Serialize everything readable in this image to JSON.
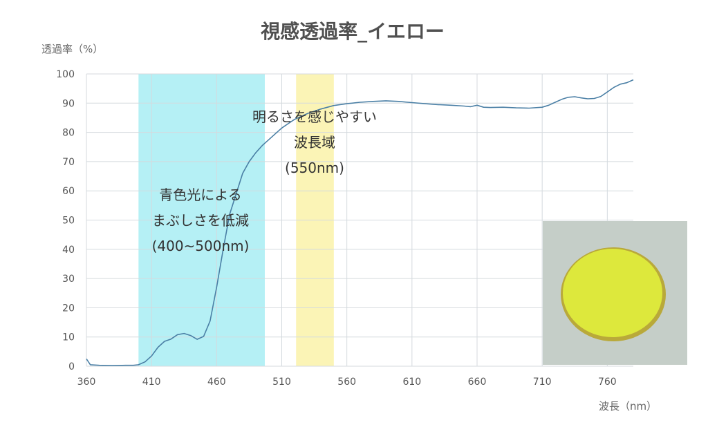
{
  "chart_data": {
    "type": "line",
    "title": "視感透過率_イエロー",
    "ylabel": "透過率（%）",
    "xlabel": "波長（nm）",
    "xlim": [
      360,
      780
    ],
    "ylim": [
      0,
      100
    ],
    "x_ticks": [
      360,
      410,
      460,
      510,
      560,
      610,
      660,
      710,
      760
    ],
    "y_ticks": [
      0,
      10,
      20,
      30,
      40,
      50,
      60,
      70,
      80,
      90,
      100
    ],
    "grid": true,
    "series": [
      {
        "color": "#4a7fa5",
        "points": [
          [
            360,
            2.5
          ],
          [
            363,
            0.5
          ],
          [
            370,
            0.3
          ],
          [
            380,
            0.2
          ],
          [
            390,
            0.3
          ],
          [
            396,
            0.3
          ],
          [
            400,
            0.5
          ],
          [
            405,
            1.5
          ],
          [
            410,
            3.5
          ],
          [
            415,
            6.5
          ],
          [
            420,
            8.5
          ],
          [
            425,
            9.3
          ],
          [
            430,
            10.8
          ],
          [
            435,
            11.2
          ],
          [
            440,
            10.5
          ],
          [
            445,
            9.2
          ],
          [
            450,
            10.2
          ],
          [
            455,
            15.5
          ],
          [
            460,
            27
          ],
          [
            465,
            40
          ],
          [
            470,
            52
          ],
          [
            475,
            59
          ],
          [
            480,
            66
          ],
          [
            485,
            70
          ],
          [
            490,
            73
          ],
          [
            495,
            75.5
          ],
          [
            500,
            77.5
          ],
          [
            505,
            79.5
          ],
          [
            510,
            81.5
          ],
          [
            515,
            83
          ],
          [
            520,
            84.5
          ],
          [
            530,
            86.5
          ],
          [
            540,
            88
          ],
          [
            550,
            89.2
          ],
          [
            560,
            89.8
          ],
          [
            570,
            90.3
          ],
          [
            580,
            90.6
          ],
          [
            590,
            90.8
          ],
          [
            600,
            90.6
          ],
          [
            610,
            90.2
          ],
          [
            620,
            89.8
          ],
          [
            630,
            89.5
          ],
          [
            640,
            89.3
          ],
          [
            650,
            89
          ],
          [
            655,
            88.8
          ],
          [
            660,
            89.3
          ],
          [
            665,
            88.6
          ],
          [
            670,
            88.5
          ],
          [
            680,
            88.6
          ],
          [
            690,
            88.4
          ],
          [
            700,
            88.3
          ],
          [
            710,
            88.6
          ],
          [
            715,
            89.3
          ],
          [
            720,
            90.3
          ],
          [
            725,
            91.3
          ],
          [
            730,
            92
          ],
          [
            735,
            92.2
          ],
          [
            740,
            91.8
          ],
          [
            745,
            91.5
          ],
          [
            750,
            91.6
          ],
          [
            755,
            92.3
          ],
          [
            760,
            93.8
          ],
          [
            765,
            95.4
          ],
          [
            770,
            96.5
          ],
          [
            775,
            97
          ],
          [
            780,
            98
          ]
        ]
      }
    ],
    "bands": [
      {
        "from": 400,
        "to": 497,
        "color": "#b5f0f5",
        "lines": [
          "青色光による",
          "まぶしさを低減",
          "(400~500nm)"
        ]
      },
      {
        "from": 521,
        "to": 550,
        "color": "#fbf4b6",
        "lines": [
          "明るさを感じやすい",
          "波長域",
          "(550nm)"
        ]
      }
    ]
  }
}
